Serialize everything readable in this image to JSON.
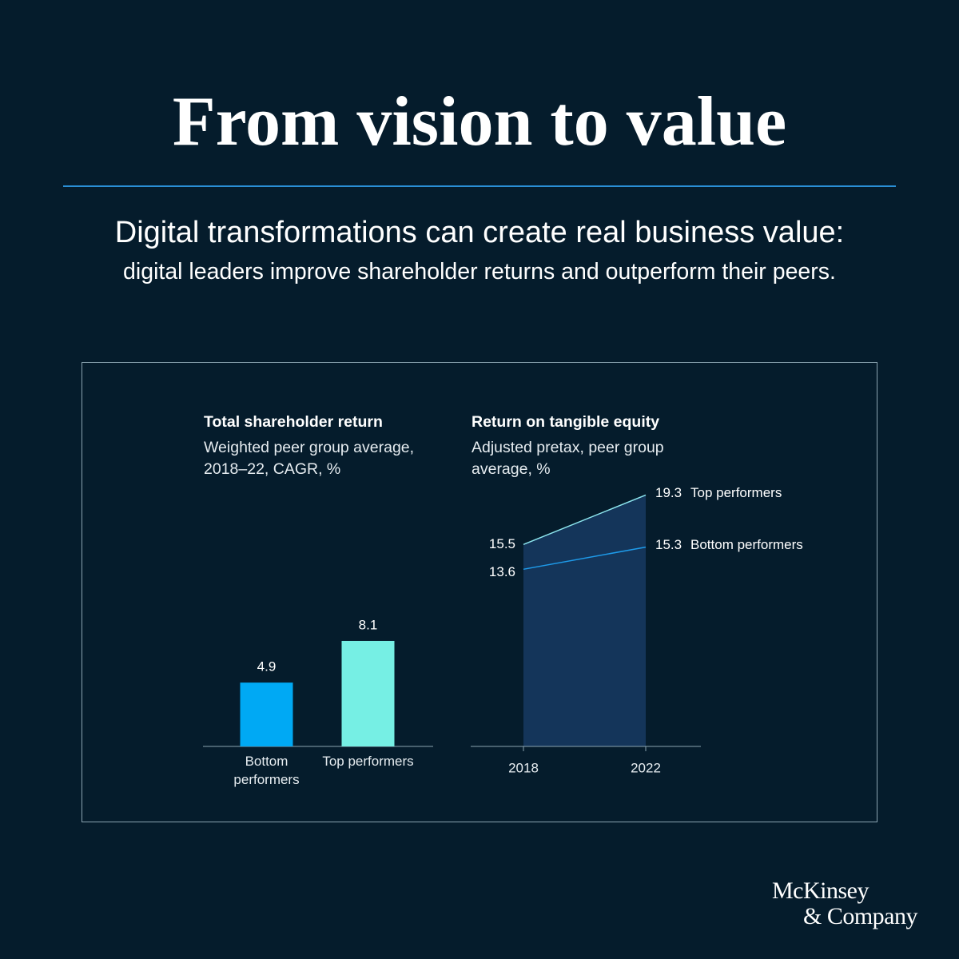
{
  "title": "From vision to value",
  "subtitle": "Digital transformations can create real business value:",
  "subtitle_detail": "digital leaders improve shareholder returns and outperform their peers.",
  "logo": [
    "McKinsey",
    "& Company"
  ],
  "chart_data": [
    {
      "type": "bar",
      "title": "Total shareholder return",
      "subtitle": "Weighted peer group average, 2018–22, CAGR, %",
      "categories": [
        "Bottom performers",
        "Top performers"
      ],
      "values": [
        4.9,
        8.1
      ],
      "colors": [
        "#00a9f4",
        "#76efe4"
      ]
    },
    {
      "type": "line",
      "title": "Return on tangible equity",
      "subtitle": "Adjusted pretax, peer group average, %",
      "x": [
        "2018",
        "2022"
      ],
      "area_color": "#14355a",
      "series": [
        {
          "name": "Top performers",
          "color": "#8de6ef",
          "values": [
            15.5,
            19.3
          ]
        },
        {
          "name": "Bottom performers",
          "color": "#1e9bea",
          "values": [
            13.6,
            15.3
          ]
        }
      ]
    }
  ]
}
